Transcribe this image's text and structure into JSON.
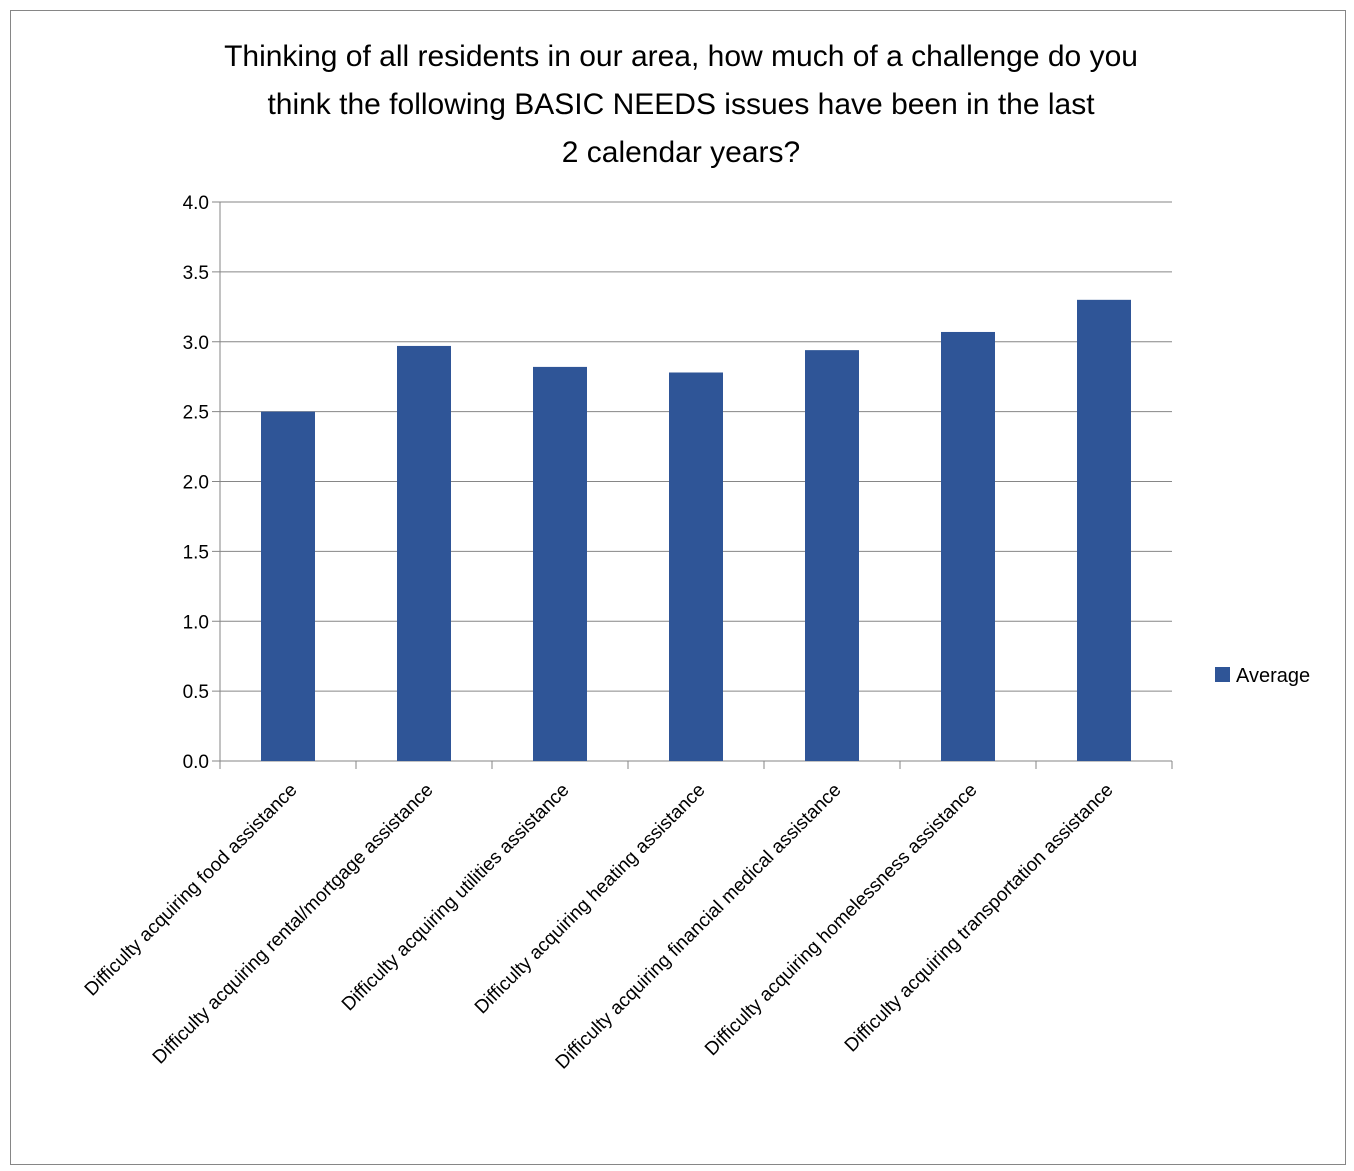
{
  "chart_data": {
    "type": "bar",
    "title_lines": [
      "Thinking of all residents in our area, how much of a challenge do you",
      "think the following BASIC NEEDS issues have been in the last",
      "2 calendar years?"
    ],
    "categories": [
      "Difficulty acquiring food assistance",
      "Difficulty acquiring rental/mortgage assistance",
      "Difficulty acquiring utilities assistance",
      "Difficulty acquiring heating assistance",
      "Difficulty acquiring financial medical assistance",
      "Difficulty acquiring homelessness assistance",
      "Difficulty acquiring transportation assistance"
    ],
    "series": [
      {
        "name": "Average",
        "values": [
          2.5,
          2.97,
          2.82,
          2.78,
          2.94,
          3.07,
          3.3
        ],
        "color": "#2F5597"
      }
    ],
    "ylim": [
      0,
      4
    ],
    "yticks": [
      "0.0",
      "0.5",
      "1.0",
      "1.5",
      "2.0",
      "2.5",
      "3.0",
      "3.5",
      "4.0"
    ],
    "grid": true,
    "legend_position": "right",
    "colors": {
      "bar": "#2F5597",
      "grid": "#868686",
      "axis": "#868686"
    }
  }
}
